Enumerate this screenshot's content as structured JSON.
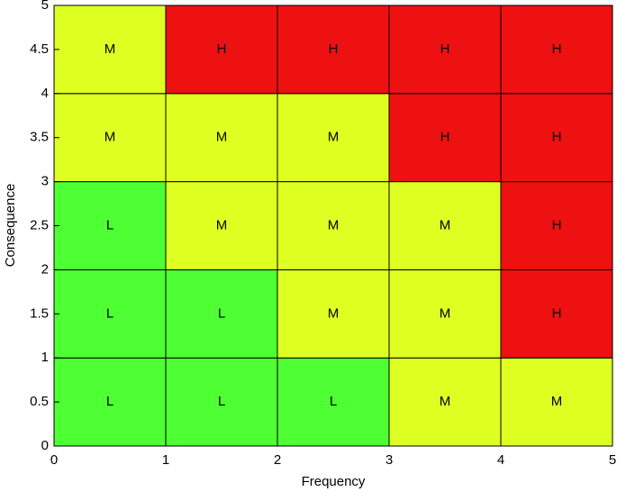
{
  "chart_data": {
    "type": "heatmap",
    "xlabel": "Frequency",
    "ylabel": "Consequence",
    "x_edges": [
      0,
      1,
      2,
      3,
      4,
      5
    ],
    "y_edges": [
      0,
      1,
      2,
      3,
      4,
      5
    ],
    "cells": [
      [
        "L",
        "L",
        "L",
        "M",
        "M"
      ],
      [
        "L",
        "L",
        "M",
        "M",
        "H"
      ],
      [
        "L",
        "M",
        "M",
        "M",
        "H"
      ],
      [
        "M",
        "M",
        "M",
        "H",
        "H"
      ],
      [
        "M",
        "H",
        "H",
        "H",
        "H"
      ]
    ],
    "level_colors": {
      "L": "#4dff33",
      "M": "#deff22",
      "H": "#ee1111"
    },
    "xlim": [
      0,
      5
    ],
    "ylim": [
      0,
      5
    ],
    "xticks": [
      0,
      1,
      2,
      3,
      4,
      5
    ],
    "yticks": [
      0,
      0.5,
      1,
      1.5,
      2,
      2.5,
      3,
      3.5,
      4,
      4.5,
      5
    ]
  }
}
